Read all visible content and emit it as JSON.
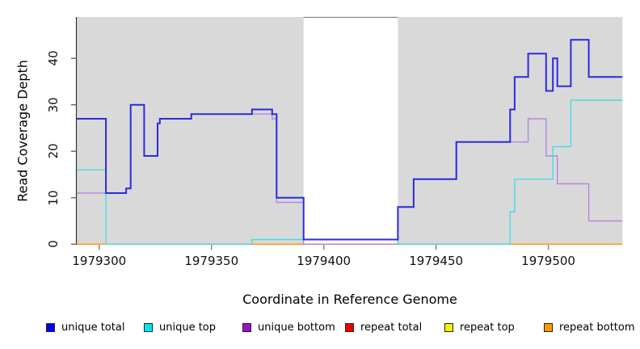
{
  "figure": {
    "x_title": "Coordinate in Reference Genome",
    "y_title": "Read Coverage Depth"
  },
  "chart_data": {
    "type": "line",
    "subtype": "step-coverage-plot",
    "title": "",
    "xlabel": "Coordinate in Reference Genome",
    "ylabel": "Read Coverage Depth",
    "xlim": [
      1979290,
      1979533
    ],
    "ylim": [
      0,
      48.9
    ],
    "x_ticks": [
      1979300,
      1979350,
      1979400,
      1979450,
      1979500
    ],
    "y_ticks": [
      0,
      10,
      20,
      30,
      40
    ],
    "grid": "off",
    "panel_bg": "#d9d9d9",
    "highlight_region": {
      "x0": 1979391,
      "x1": 1979433,
      "color": "#ffffff",
      "top_border": "#8a8a8a"
    },
    "series": [
      {
        "name": "repeat total",
        "color": "#dd1111",
        "width": 1.4,
        "steps": [
          [
            1979290,
            0
          ]
        ],
        "x_end": 1979533
      },
      {
        "name": "repeat top",
        "color": "#f2f20a",
        "width": 1.4,
        "steps": [
          [
            1979290,
            0
          ]
        ],
        "x_end": 1979533
      },
      {
        "name": "repeat bottom",
        "color": "#ff9e1a",
        "width": 1.6,
        "steps": [
          [
            1979290,
            0
          ]
        ],
        "x_end": 1979533
      },
      {
        "name": "unique bottom",
        "color": "#b487e0",
        "width": 1.4,
        "steps": [
          [
            1979290,
            11
          ],
          [
            1979312,
            12
          ],
          [
            1979314,
            30
          ],
          [
            1979320,
            19
          ],
          [
            1979326,
            26
          ],
          [
            1979327,
            27
          ],
          [
            1979341,
            28
          ],
          [
            1979377,
            27
          ],
          [
            1979379,
            9
          ],
          [
            1979391,
            0
          ],
          [
            1979433,
            8
          ],
          [
            1979440,
            14
          ],
          [
            1979459,
            22
          ],
          [
            1979491,
            27
          ],
          [
            1979499,
            19
          ],
          [
            1979504,
            13
          ],
          [
            1979518,
            5
          ]
        ],
        "x_end": 1979533
      },
      {
        "name": "unique top",
        "color": "#44dce8",
        "width": 1.4,
        "steps": [
          [
            1979290,
            16
          ],
          [
            1979303,
            0
          ],
          [
            1979368,
            1
          ],
          [
            1979433,
            0
          ],
          [
            1979483,
            7
          ],
          [
            1979485,
            14
          ],
          [
            1979502,
            21
          ],
          [
            1979510,
            31
          ]
        ],
        "x_end": 1979533
      },
      {
        "name": "unique total",
        "color": "#2b2be0",
        "width": 2,
        "steps": [
          [
            1979290,
            27
          ],
          [
            1979303,
            11
          ],
          [
            1979312,
            12
          ],
          [
            1979314,
            30
          ],
          [
            1979320,
            19
          ],
          [
            1979326,
            26
          ],
          [
            1979327,
            27
          ],
          [
            1979341,
            28
          ],
          [
            1979368,
            29
          ],
          [
            1979377,
            28
          ],
          [
            1979379,
            10
          ],
          [
            1979391,
            1
          ],
          [
            1979433,
            8
          ],
          [
            1979440,
            14
          ],
          [
            1979459,
            22
          ],
          [
            1979483,
            29
          ],
          [
            1979485,
            36
          ],
          [
            1979491,
            41
          ],
          [
            1979499,
            33
          ],
          [
            1979502,
            40
          ],
          [
            1979504,
            34
          ],
          [
            1979510,
            44
          ],
          [
            1979518,
            36
          ]
        ],
        "x_end": 1979533
      }
    ],
    "legend_position": "bottom",
    "legend": [
      {
        "label": "unique total",
        "color": "#0000ee"
      },
      {
        "label": "unique top",
        "color": "#00e9ee"
      },
      {
        "label": "unique bottom",
        "color": "#9911cc"
      },
      {
        "label": "repeat total",
        "color": "#ee0000"
      },
      {
        "label": "repeat top",
        "color": "#f2f200"
      },
      {
        "label": "repeat bottom",
        "color": "#ff9900"
      }
    ]
  }
}
